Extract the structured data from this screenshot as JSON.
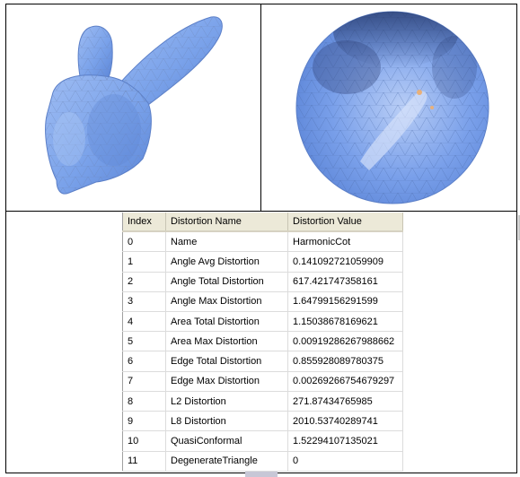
{
  "views": {
    "left": {
      "label": "3D mesh view",
      "mesh_color": "#7aa2ea"
    },
    "right": {
      "label": "Parameterized disk view",
      "mesh_color": "#6f98e4"
    }
  },
  "table": {
    "columns": [
      "Index",
      "Distortion Name",
      "Distortion Value"
    ],
    "rows": [
      {
        "index": "0",
        "name": "Name",
        "value": "HarmonicCot"
      },
      {
        "index": "1",
        "name": "Angle Avg Distortion",
        "value": "0.141092721059909"
      },
      {
        "index": "2",
        "name": "Angle Total Distortion",
        "value": "617.421747358161"
      },
      {
        "index": "3",
        "name": "Angle Max Distortion",
        "value": "1.64799156291599"
      },
      {
        "index": "4",
        "name": "Area Total Distortion",
        "value": "1.15038678169621"
      },
      {
        "index": "5",
        "name": "Area Max Distortion",
        "value": "0.00919286267988662"
      },
      {
        "index": "6",
        "name": "Edge Total  Distortion",
        "value": "0.855928089780375"
      },
      {
        "index": "7",
        "name": "Edge Max  Distortion",
        "value": "0.00269266754679297"
      },
      {
        "index": "8",
        "name": "L2 Distortion",
        "value": "271.87434765985"
      },
      {
        "index": "9",
        "name": "L8 Distortion",
        "value": "2010.53740289741"
      },
      {
        "index": "10",
        "name": "QuasiConformal",
        "value": "1.52294107135021"
      },
      {
        "index": "11",
        "name": "DegenerateTriangle",
        "value": "0"
      }
    ]
  }
}
